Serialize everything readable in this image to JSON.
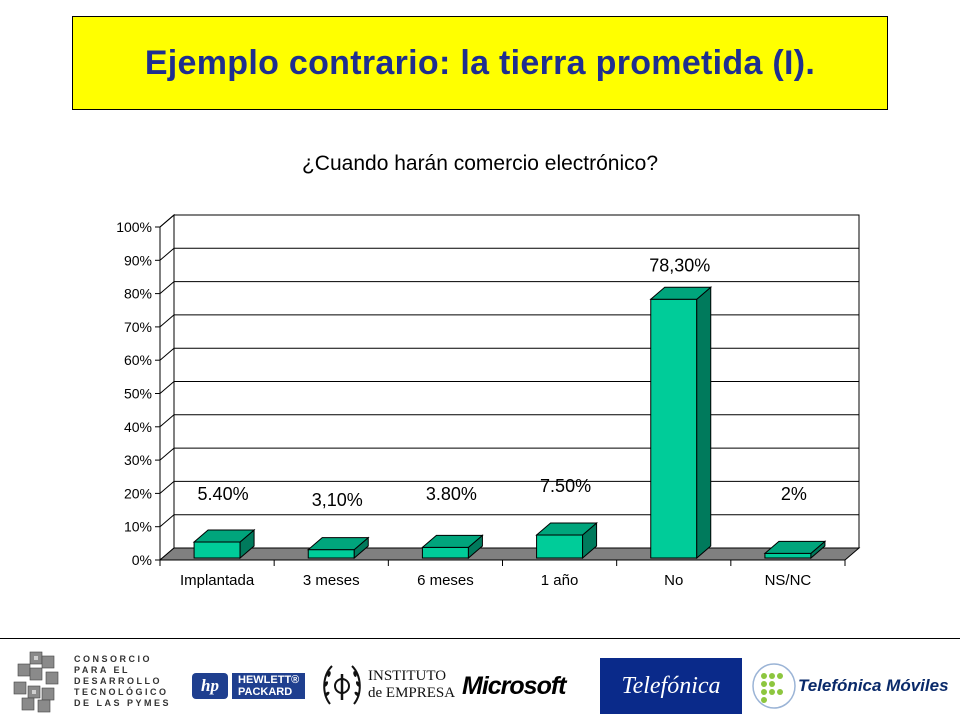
{
  "slide": {
    "title": "Ejemplo contrario: la tierra prometida (I)."
  },
  "chart_data": {
    "type": "bar",
    "title": "¿Cuando harán comercio electrónico?",
    "categories": [
      "Implantada",
      "3 meses",
      "6 meses",
      "1 año",
      "No",
      "NS/NC"
    ],
    "values": [
      5.4,
      3.1,
      3.8,
      7.5,
      78.3,
      2
    ],
    "data_labels": [
      "5.40%",
      "3,10%",
      "3.80%",
      "7.50%",
      "78,30%",
      "2%"
    ],
    "y_ticks": [
      "0%",
      "10%",
      "20%",
      "30%",
      "40%",
      "50%",
      "60%",
      "70%",
      "80%",
      "90%",
      "100%"
    ],
    "ylim": [
      0,
      100
    ],
    "grid": true,
    "three_d": true,
    "bar_color": "#00cc99",
    "bar_side_color": "#007a5c",
    "floor_color": "#808080"
  },
  "logos": {
    "consorcio": [
      "CONSORCIO",
      "PARA EL",
      "DESARROLLO",
      "TECNOLÓGICO",
      "DE LAS PYMES"
    ],
    "hp_badge": "hp",
    "hp_lines": [
      "HEWLETT®",
      "PACKARD"
    ],
    "instituto_lines": [
      "INSTITUTO",
      "de EMPRESA"
    ],
    "microsoft": "Microsoft",
    "telefonica": "Telefónica",
    "telefonica_moviles": "Telefónica Móviles"
  }
}
